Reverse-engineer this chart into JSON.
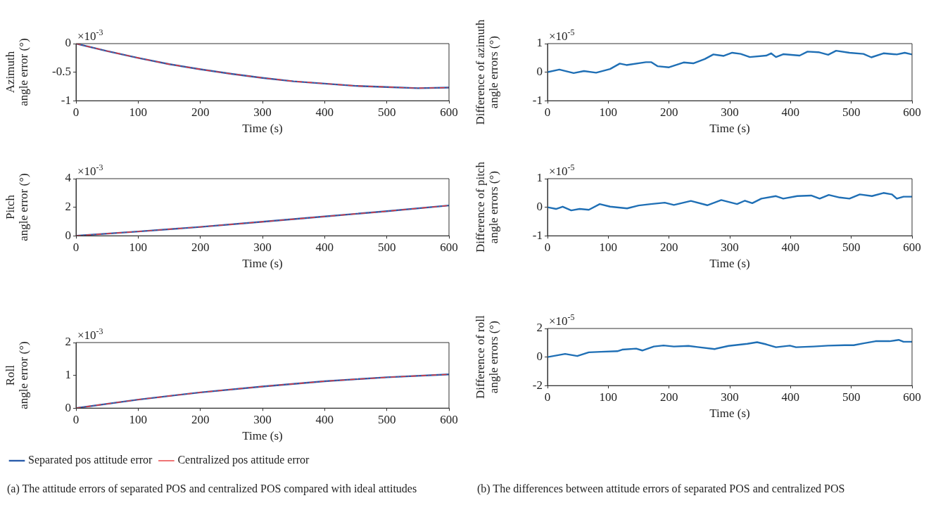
{
  "chart_data": [
    {
      "type": "line",
      "xlabel": "Time (s)",
      "ylabel": "Azimuth\nangle error (°)",
      "annotations": [
        "×10$^{-3}$"
      ],
      "xlim": [
        0,
        600
      ],
      "xticks": [
        0,
        100,
        200,
        300,
        400,
        500,
        600
      ],
      "ylim": [
        -1,
        0
      ],
      "yticks": [
        -1,
        -0.5,
        0
      ],
      "grid": false,
      "legend": false,
      "marker": "none",
      "series": [
        {
          "color": "#2a5caa",
          "line_style": "solid",
          "x": [
            0,
            50,
            100,
            150,
            200,
            250,
            300,
            350,
            400,
            450,
            500,
            550,
            600
          ],
          "values": [
            0,
            -0.13,
            -0.25,
            -0.36,
            -0.45,
            -0.53,
            -0.6,
            -0.66,
            -0.7,
            -0.74,
            -0.76,
            -0.78,
            -0.77
          ]
        },
        {
          "color": "#e8393a",
          "line_style": "dashed",
          "x": [
            0,
            50,
            100,
            150,
            200,
            250,
            300,
            350,
            400,
            450,
            500,
            550,
            600
          ],
          "values": [
            0,
            -0.13,
            -0.25,
            -0.36,
            -0.45,
            -0.53,
            -0.6,
            -0.66,
            -0.7,
            -0.74,
            -0.76,
            -0.78,
            -0.77
          ]
        }
      ]
    },
    {
      "type": "line",
      "xlabel": "Time (s)",
      "ylabel": "Difference of azimuth\nangle errors (°)",
      "annotations": [
        "×10$^{-5}$"
      ],
      "xlim": [
        0,
        600
      ],
      "xticks": [
        0,
        100,
        200,
        300,
        400,
        500,
        600
      ],
      "ylim": [
        -1,
        1
      ],
      "yticks": [
        -1,
        0,
        1
      ],
      "grid": false,
      "legend": false,
      "marker": "none",
      "series": [
        {
          "color": "#1f6fb5",
          "line_style": "solid",
          "x": [
            0,
            19.5,
            43,
            60,
            80,
            103,
            119,
            130,
            162,
            171,
            181,
            200,
            224,
            240,
            259,
            273,
            290,
            304,
            318,
            333,
            360,
            368,
            376,
            388,
            415,
            428,
            446,
            462,
            475,
            497,
            520,
            533,
            553,
            575,
            588,
            600
          ],
          "values": [
            0,
            0.09,
            -0.03,
            0.04,
            -0.02,
            0.11,
            0.3,
            0.25,
            0.35,
            0.35,
            0.21,
            0.17,
            0.34,
            0.31,
            0.46,
            0.62,
            0.57,
            0.68,
            0.64,
            0.53,
            0.58,
            0.66,
            0.53,
            0.63,
            0.58,
            0.72,
            0.7,
            0.61,
            0.75,
            0.68,
            0.64,
            0.52,
            0.66,
            0.62,
            0.68,
            0.62
          ]
        }
      ]
    },
    {
      "type": "line",
      "xlabel": "Time (s)",
      "ylabel": "Pitch\nangle error (°)",
      "annotations": [
        "×10$^{-3}$"
      ],
      "xlim": [
        0,
        600
      ],
      "xticks": [
        0,
        100,
        200,
        300,
        400,
        500,
        600
      ],
      "ylim": [
        0,
        4
      ],
      "yticks": [
        0,
        2,
        4
      ],
      "grid": false,
      "legend": false,
      "marker": "none",
      "series": [
        {
          "color": "#2a5caa",
          "line_style": "solid",
          "x": [
            0,
            100,
            200,
            300,
            400,
            500,
            600
          ],
          "values": [
            0,
            0.3,
            0.62,
            0.98,
            1.35,
            1.72,
            2.12
          ]
        },
        {
          "color": "#e8393a",
          "line_style": "dashed",
          "x": [
            0,
            100,
            200,
            300,
            400,
            500,
            600
          ],
          "values": [
            0,
            0.3,
            0.62,
            0.98,
            1.35,
            1.72,
            2.12
          ]
        }
      ]
    },
    {
      "type": "line",
      "xlabel": "Time (s)",
      "ylabel": "Difference of pitch\nangle errors (°)",
      "annotations": [
        "×10$^{-5}$"
      ],
      "xlim": [
        0,
        600
      ],
      "xticks": [
        0,
        100,
        200,
        300,
        400,
        500,
        600
      ],
      "ylim": [
        -1,
        1
      ],
      "yticks": [
        -1,
        0,
        1
      ],
      "grid": false,
      "legend": false,
      "marker": "none",
      "series": [
        {
          "color": "#1f6fb5",
          "line_style": "solid",
          "x": [
            0,
            14,
            25,
            39,
            53,
            68,
            86,
            103,
            131,
            150,
            170,
            193,
            208,
            236,
            263,
            286,
            312,
            325,
            337,
            352,
            376,
            388,
            411,
            434,
            448,
            463,
            481,
            497,
            514,
            534,
            553,
            567,
            575,
            586,
            600
          ],
          "values": [
            0,
            -0.06,
            0.02,
            -0.11,
            -0.06,
            -0.09,
            0.11,
            0.02,
            -0.04,
            0.06,
            0.11,
            0.16,
            0.08,
            0.22,
            0.07,
            0.25,
            0.11,
            0.23,
            0.14,
            0.3,
            0.39,
            0.3,
            0.39,
            0.41,
            0.3,
            0.43,
            0.34,
            0.3,
            0.45,
            0.39,
            0.5,
            0.45,
            0.3,
            0.37,
            0.37
          ]
        }
      ]
    },
    {
      "type": "line",
      "xlabel": "Time (s)",
      "ylabel": "Roll\nangle error (°)",
      "annotations": [
        "×10$^{-3}$",
        "(a)  The attitude errors of separated POS and centralized POS compared with ideal attitudes"
      ],
      "xlim": [
        0,
        600
      ],
      "xticks": [
        0,
        100,
        200,
        300,
        400,
        500,
        600
      ],
      "ylim": [
        0,
        2
      ],
      "yticks": [
        0,
        1,
        2
      ],
      "grid": false,
      "legend": "bottom",
      "marker": "none",
      "series": [
        {
          "name": "Separated pos attitude error",
          "color": "#2a5caa",
          "line_style": "solid",
          "x": [
            0,
            100,
            200,
            300,
            400,
            500,
            600
          ],
          "values": [
            0,
            0.26,
            0.48,
            0.66,
            0.82,
            0.94,
            1.03
          ]
        },
        {
          "name": "Centralized pos attitude error",
          "color": "#e8393a",
          "line_style": "dashed",
          "x": [
            0,
            100,
            200,
            300,
            400,
            500,
            600
          ],
          "values": [
            0,
            0.26,
            0.48,
            0.66,
            0.82,
            0.94,
            1.03
          ]
        }
      ]
    },
    {
      "type": "line",
      "xlabel": "Time (s)",
      "ylabel": "Difference of roll\nangle errors (°)",
      "annotations": [
        "×10$^{-5}$",
        "(b)  The differences between attitude errors of separated POS and centralized POS"
      ],
      "xlim": [
        0,
        600
      ],
      "xticks": [
        0,
        100,
        200,
        300,
        400,
        500,
        600
      ],
      "ylim": [
        -2,
        2
      ],
      "yticks": [
        -2,
        0,
        2
      ],
      "grid": false,
      "legend": false,
      "marker": "none",
      "series": [
        {
          "color": "#1f6fb5",
          "line_style": "solid",
          "x": [
            0,
            29,
            49,
            68,
            88,
            115,
            123,
            146,
            156,
            175,
            191,
            208,
            232,
            247,
            275,
            298,
            329,
            345,
            360,
            376,
            399,
            409,
            438,
            462,
            489,
            504,
            520,
            540,
            563,
            578,
            586,
            600
          ],
          "values": [
            0,
            0.22,
            0.07,
            0.33,
            0.37,
            0.41,
            0.52,
            0.59,
            0.46,
            0.74,
            0.81,
            0.74,
            0.78,
            0.7,
            0.56,
            0.78,
            0.93,
            1.04,
            0.89,
            0.69,
            0.8,
            0.69,
            0.74,
            0.8,
            0.83,
            0.83,
            0.96,
            1.11,
            1.11,
            1.2,
            1.07,
            1.07
          ]
        }
      ]
    }
  ]
}
